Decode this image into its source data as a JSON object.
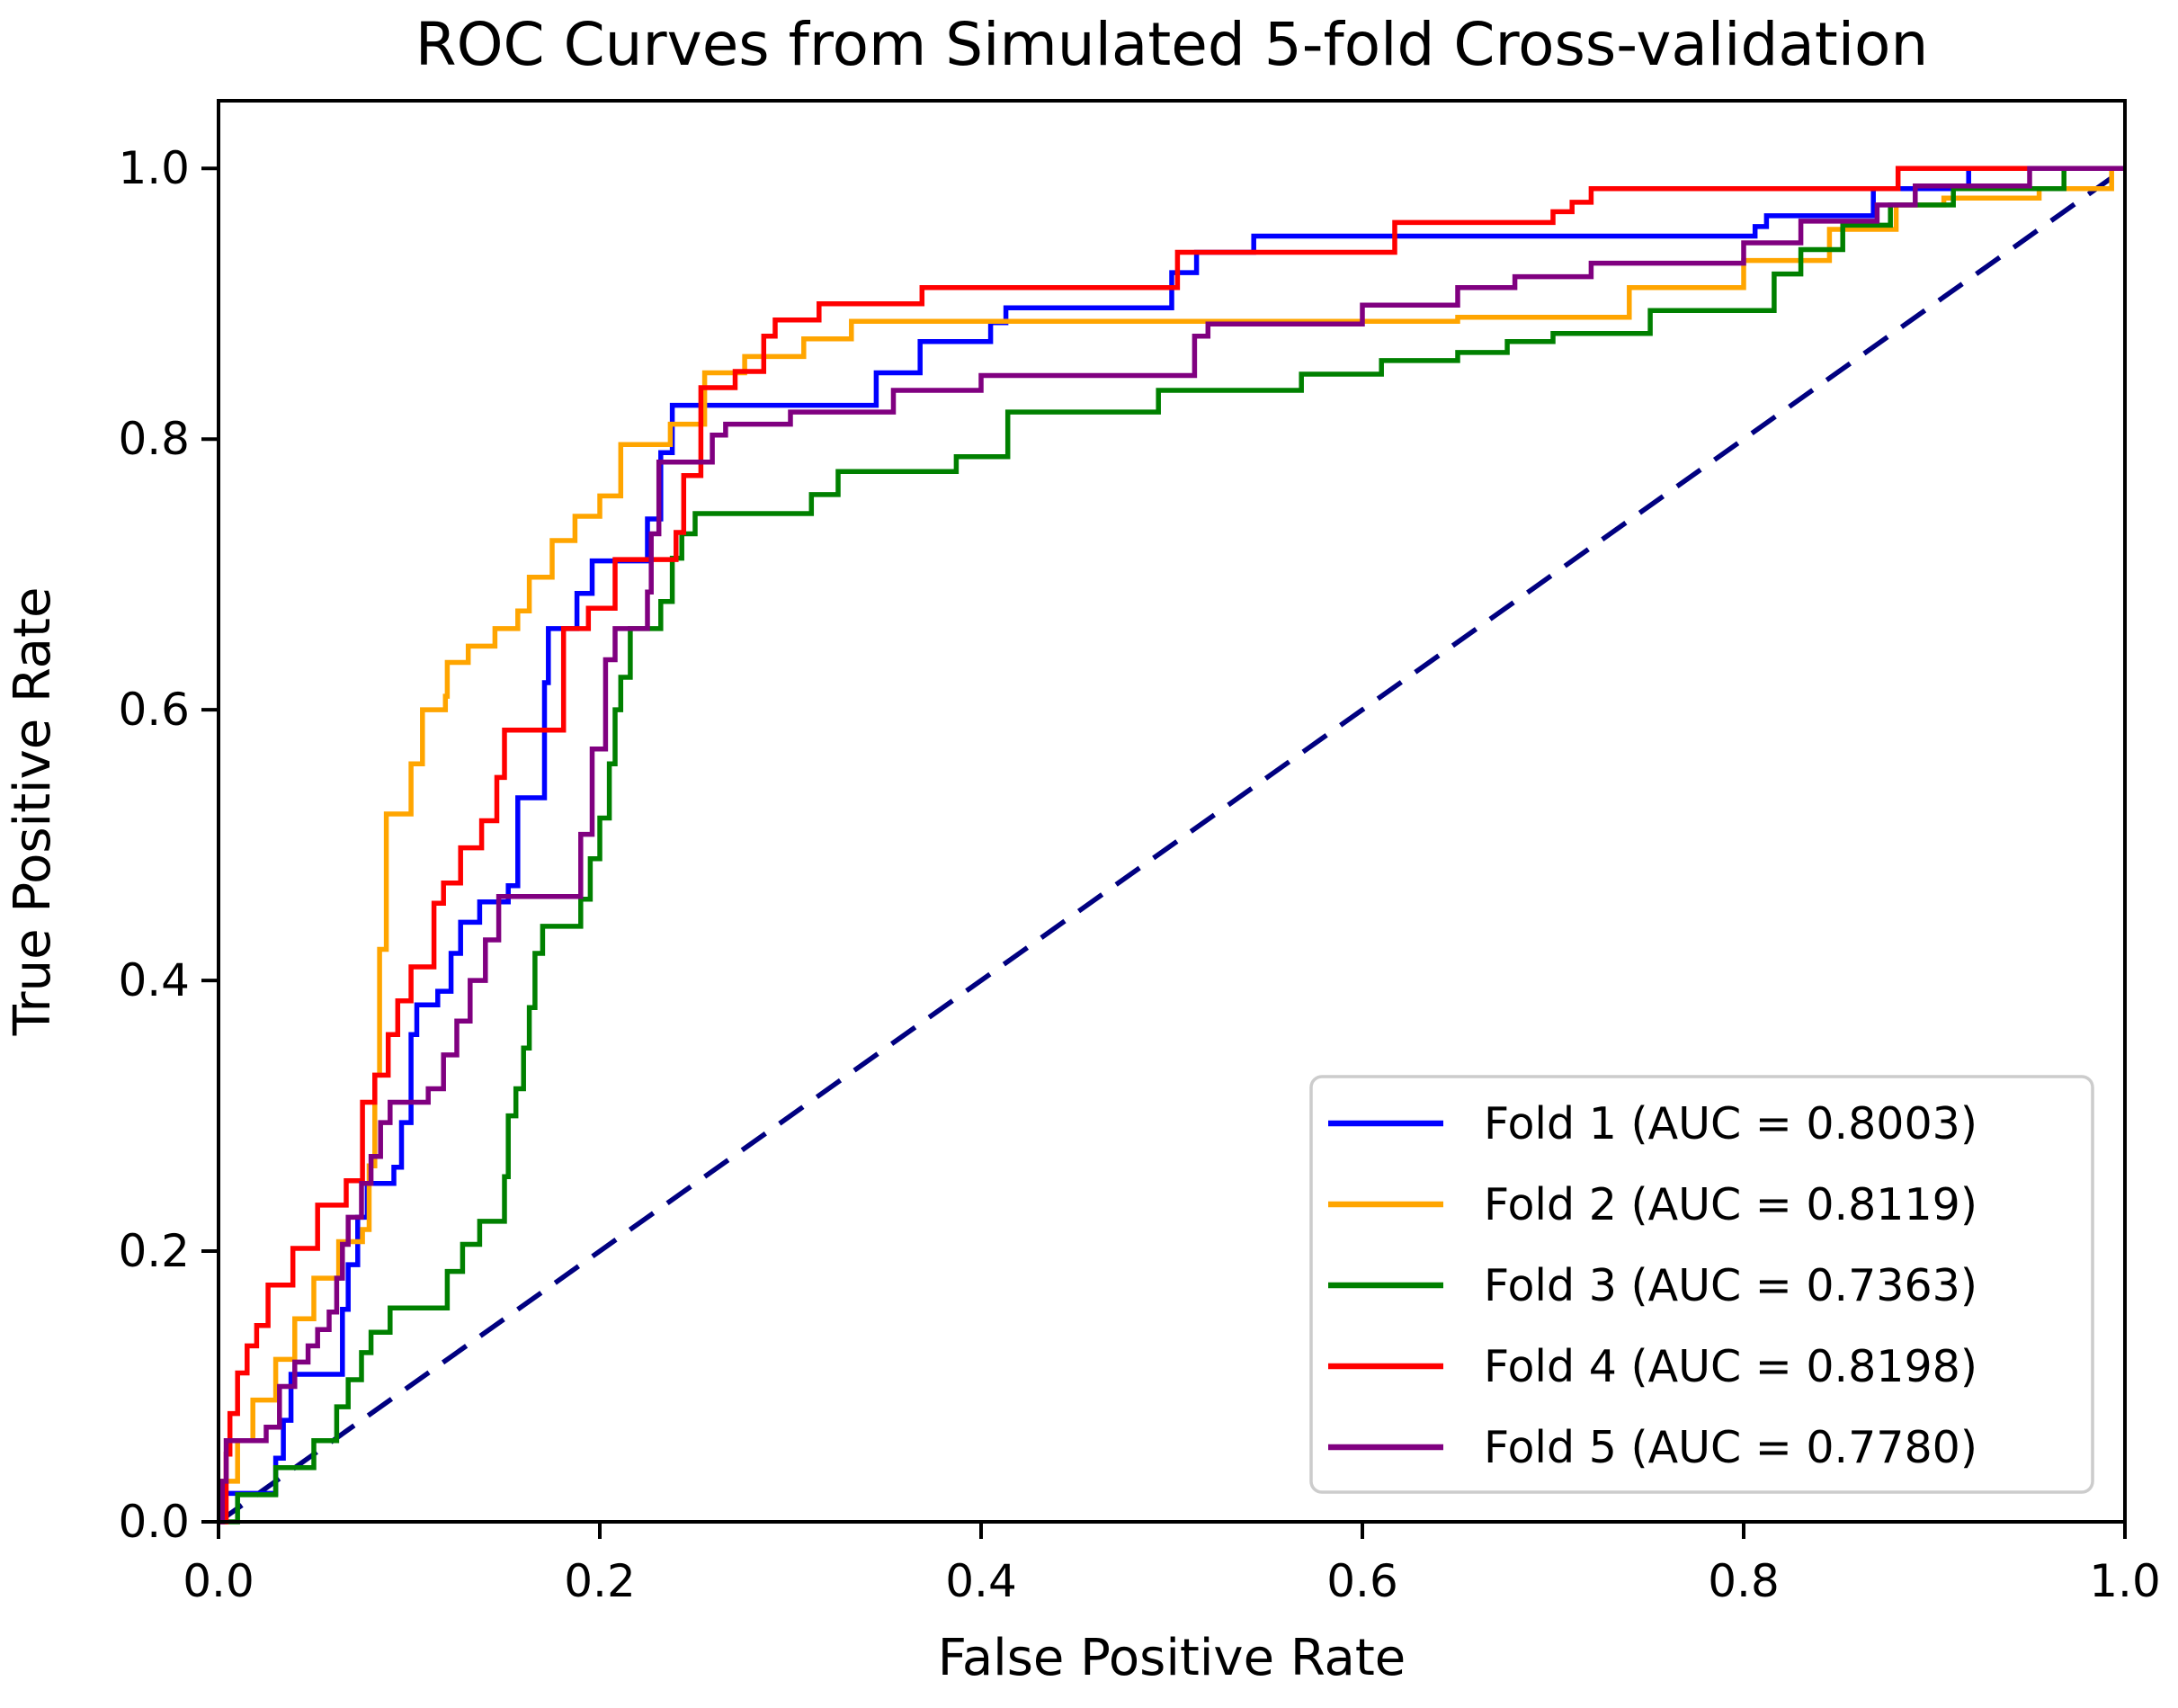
{
  "title": "ROC Curves from Simulated 5-fold Cross-validation",
  "axes": {
    "xlabel": "False Positive Rate",
    "ylabel": "True Positive Rate",
    "x_ticks": [
      0.0,
      0.2,
      0.4,
      0.6,
      0.8,
      1.0
    ],
    "x_tick_labels": [
      "0.0",
      "0.2",
      "0.4",
      "0.6",
      "0.8",
      "1.0"
    ],
    "y_ticks": [
      0.0,
      0.2,
      0.4,
      0.6,
      0.8,
      1.0
    ],
    "y_tick_labels": [
      "0.0",
      "0.2",
      "0.4",
      "0.6",
      "0.8",
      "1.0"
    ],
    "xlim": [
      0.0,
      1.0
    ],
    "ylim": [
      0.0,
      1.05
    ]
  },
  "colors": {
    "fold1": "#0000ff",
    "fold2": "#ffa500",
    "fold3": "#008000",
    "fold4": "#ff0000",
    "fold5": "#800080",
    "chance_line": "#000080",
    "legend_border": "#cccccc",
    "axis": "#000000",
    "background": "#ffffff"
  },
  "chart_data": {
    "type": "line",
    "subtype": "roc-step-curves",
    "title": "ROC Curves from Simulated 5-fold Cross-validation",
    "xlabel": "False Positive Rate",
    "ylabel": "True Positive Rate",
    "xlim": [
      0.0,
      1.0
    ],
    "ylim": [
      0.0,
      1.05
    ],
    "grid": false,
    "legend_position": "lower right",
    "series": [
      {
        "name": "fold-1",
        "label": "Fold 1 (AUC = 0.8003)",
        "auc": 0.8003,
        "color": "#0000ff",
        "points": [
          [
            0,
            0
          ],
          [
            0.003,
            0.021
          ],
          [
            0.03,
            0.047
          ],
          [
            0.034,
            0.075
          ],
          [
            0.038,
            0.109
          ],
          [
            0.065,
            0.157
          ],
          [
            0.068,
            0.19
          ],
          [
            0.073,
            0.225
          ],
          [
            0.078,
            0.25
          ],
          [
            0.092,
            0.262
          ],
          [
            0.096,
            0.295
          ],
          [
            0.101,
            0.36
          ],
          [
            0.104,
            0.382
          ],
          [
            0.115,
            0.392
          ],
          [
            0.122,
            0.42
          ],
          [
            0.127,
            0.443
          ],
          [
            0.137,
            0.458
          ],
          [
            0.152,
            0.47
          ],
          [
            0.157,
            0.535
          ],
          [
            0.171,
            0.62
          ],
          [
            0.173,
            0.66
          ],
          [
            0.188,
            0.686
          ],
          [
            0.196,
            0.71
          ],
          [
            0.225,
            0.741
          ],
          [
            0.232,
            0.79
          ],
          [
            0.238,
            0.825
          ],
          [
            0.345,
            0.849
          ],
          [
            0.368,
            0.872
          ],
          [
            0.405,
            0.886
          ],
          [
            0.413,
            0.897
          ],
          [
            0.5,
            0.923
          ],
          [
            0.513,
            0.938
          ],
          [
            0.543,
            0.95
          ],
          [
            0.806,
            0.957
          ],
          [
            0.812,
            0.965
          ],
          [
            0.868,
            0.985
          ],
          [
            0.918,
            1.0
          ],
          [
            1.0,
            1.0
          ]
        ]
      },
      {
        "name": "fold-2",
        "label": "Fold 2 (AUC = 0.8119)",
        "auc": 0.8119,
        "color": "#ffa500",
        "points": [
          [
            0,
            0
          ],
          [
            0.002,
            0.03
          ],
          [
            0.01,
            0.06
          ],
          [
            0.018,
            0.09
          ],
          [
            0.03,
            0.12
          ],
          [
            0.04,
            0.15
          ],
          [
            0.05,
            0.18
          ],
          [
            0.063,
            0.207
          ],
          [
            0.0755,
            0.216
          ],
          [
            0.079,
            0.263
          ],
          [
            0.082,
            0.33
          ],
          [
            0.0845,
            0.423
          ],
          [
            0.088,
            0.523
          ],
          [
            0.101,
            0.56
          ],
          [
            0.107,
            0.6
          ],
          [
            0.119,
            0.61
          ],
          [
            0.12,
            0.635
          ],
          [
            0.131,
            0.647
          ],
          [
            0.145,
            0.66
          ],
          [
            0.157,
            0.673
          ],
          [
            0.163,
            0.698
          ],
          [
            0.175,
            0.725
          ],
          [
            0.187,
            0.743
          ],
          [
            0.2,
            0.758
          ],
          [
            0.211,
            0.796
          ],
          [
            0.237,
            0.811
          ],
          [
            0.255,
            0.849
          ],
          [
            0.276,
            0.861
          ],
          [
            0.307,
            0.874
          ],
          [
            0.332,
            0.887
          ],
          [
            0.65,
            0.89
          ],
          [
            0.74,
            0.912
          ],
          [
            0.8,
            0.932
          ],
          [
            0.845,
            0.955
          ],
          [
            0.88,
            0.973
          ],
          [
            0.905,
            0.978
          ],
          [
            0.955,
            0.985
          ],
          [
            0.993,
            1.0
          ],
          [
            1.0,
            1.0
          ]
        ]
      },
      {
        "name": "fold-3",
        "label": "Fold 3 (AUC = 0.7363)",
        "auc": 0.7363,
        "color": "#008000",
        "points": [
          [
            0,
            0
          ],
          [
            0.01,
            0.02
          ],
          [
            0.03,
            0.04
          ],
          [
            0.05,
            0.06
          ],
          [
            0.062,
            0.085
          ],
          [
            0.068,
            0.105
          ],
          [
            0.075,
            0.125
          ],
          [
            0.08,
            0.14
          ],
          [
            0.09,
            0.158
          ],
          [
            0.12,
            0.185
          ],
          [
            0.128,
            0.205
          ],
          [
            0.137,
            0.222
          ],
          [
            0.15,
            0.255
          ],
          [
            0.152,
            0.3
          ],
          [
            0.156,
            0.32
          ],
          [
            0.16,
            0.35
          ],
          [
            0.163,
            0.38
          ],
          [
            0.166,
            0.42
          ],
          [
            0.17,
            0.44
          ],
          [
            0.19,
            0.46
          ],
          [
            0.195,
            0.49
          ],
          [
            0.2,
            0.52
          ],
          [
            0.205,
            0.56
          ],
          [
            0.208,
            0.6
          ],
          [
            0.211,
            0.624
          ],
          [
            0.216,
            0.66
          ],
          [
            0.232,
            0.68
          ],
          [
            0.238,
            0.712
          ],
          [
            0.243,
            0.73
          ],
          [
            0.25,
            0.745
          ],
          [
            0.311,
            0.759
          ],
          [
            0.325,
            0.776
          ],
          [
            0.387,
            0.787
          ],
          [
            0.414,
            0.82
          ],
          [
            0.493,
            0.836
          ],
          [
            0.568,
            0.848
          ],
          [
            0.61,
            0.858
          ],
          [
            0.65,
            0.864
          ],
          [
            0.676,
            0.872
          ],
          [
            0.7,
            0.878
          ],
          [
            0.751,
            0.895
          ],
          [
            0.816,
            0.922
          ],
          [
            0.83,
            0.94
          ],
          [
            0.852,
            0.958
          ],
          [
            0.877,
            0.973
          ],
          [
            0.91,
            0.985
          ],
          [
            0.968,
            1.0
          ],
          [
            1.0,
            1.0
          ]
        ]
      },
      {
        "name": "fold-4",
        "label": "Fold 4 (AUC = 0.8198)",
        "auc": 0.8198,
        "color": "#ff0000",
        "points": [
          [
            0,
            0
          ],
          [
            0.004,
            0.05
          ],
          [
            0.006,
            0.08
          ],
          [
            0.01,
            0.11
          ],
          [
            0.015,
            0.13
          ],
          [
            0.02,
            0.145
          ],
          [
            0.026,
            0.175
          ],
          [
            0.039,
            0.202
          ],
          [
            0.052,
            0.234
          ],
          [
            0.067,
            0.252
          ],
          [
            0.0755,
            0.31
          ],
          [
            0.082,
            0.33
          ],
          [
            0.089,
            0.36
          ],
          [
            0.094,
            0.385
          ],
          [
            0.101,
            0.41
          ],
          [
            0.113,
            0.457
          ],
          [
            0.118,
            0.472
          ],
          [
            0.127,
            0.498
          ],
          [
            0.138,
            0.518
          ],
          [
            0.146,
            0.55
          ],
          [
            0.15,
            0.585
          ],
          [
            0.181,
            0.66
          ],
          [
            0.194,
            0.675
          ],
          [
            0.208,
            0.711
          ],
          [
            0.24,
            0.731
          ],
          [
            0.244,
            0.773
          ],
          [
            0.253,
            0.838
          ],
          [
            0.271,
            0.85
          ],
          [
            0.286,
            0.876
          ],
          [
            0.292,
            0.888
          ],
          [
            0.315,
            0.9
          ],
          [
            0.369,
            0.912
          ],
          [
            0.503,
            0.938
          ],
          [
            0.617,
            0.96
          ],
          [
            0.7,
            0.968
          ],
          [
            0.71,
            0.975
          ],
          [
            0.72,
            0.985
          ],
          [
            0.881,
            1.0
          ],
          [
            1.0,
            1.0
          ]
        ]
      },
      {
        "name": "fold-5",
        "label": "Fold 5 (AUC = 0.7780)",
        "auc": 0.778,
        "color": "#800080",
        "points": [
          [
            0,
            0
          ],
          [
            0.002,
            0.03
          ],
          [
            0.004,
            0.06
          ],
          [
            0.025,
            0.07
          ],
          [
            0.032,
            0.1
          ],
          [
            0.04,
            0.118
          ],
          [
            0.047,
            0.13
          ],
          [
            0.052,
            0.142
          ],
          [
            0.058,
            0.155
          ],
          [
            0.062,
            0.18
          ],
          [
            0.065,
            0.205
          ],
          [
            0.068,
            0.225
          ],
          [
            0.075,
            0.25
          ],
          [
            0.08,
            0.27
          ],
          [
            0.085,
            0.295
          ],
          [
            0.09,
            0.31
          ],
          [
            0.11,
            0.32
          ],
          [
            0.118,
            0.345
          ],
          [
            0.125,
            0.37
          ],
          [
            0.132,
            0.4
          ],
          [
            0.14,
            0.43
          ],
          [
            0.147,
            0.462
          ],
          [
            0.19,
            0.508
          ],
          [
            0.196,
            0.571
          ],
          [
            0.203,
            0.637
          ],
          [
            0.208,
            0.66
          ],
          [
            0.225,
            0.687
          ],
          [
            0.227,
            0.73
          ],
          [
            0.231,
            0.783
          ],
          [
            0.259,
            0.803
          ],
          [
            0.266,
            0.811
          ],
          [
            0.3,
            0.82
          ],
          [
            0.354,
            0.836
          ],
          [
            0.4,
            0.847
          ],
          [
            0.512,
            0.876
          ],
          [
            0.519,
            0.885
          ],
          [
            0.6,
            0.899
          ],
          [
            0.65,
            0.912
          ],
          [
            0.68,
            0.92
          ],
          [
            0.72,
            0.93
          ],
          [
            0.8,
            0.945
          ],
          [
            0.83,
            0.961
          ],
          [
            0.87,
            0.973
          ],
          [
            0.89,
            0.987
          ],
          [
            0.95,
            1.0
          ],
          [
            1.0,
            1.0
          ]
        ]
      }
    ],
    "reference_line": {
      "name": "chance-diagonal",
      "color": "#000080",
      "style": "dashed",
      "points": [
        [
          0,
          0
        ],
        [
          1,
          1
        ]
      ]
    }
  }
}
